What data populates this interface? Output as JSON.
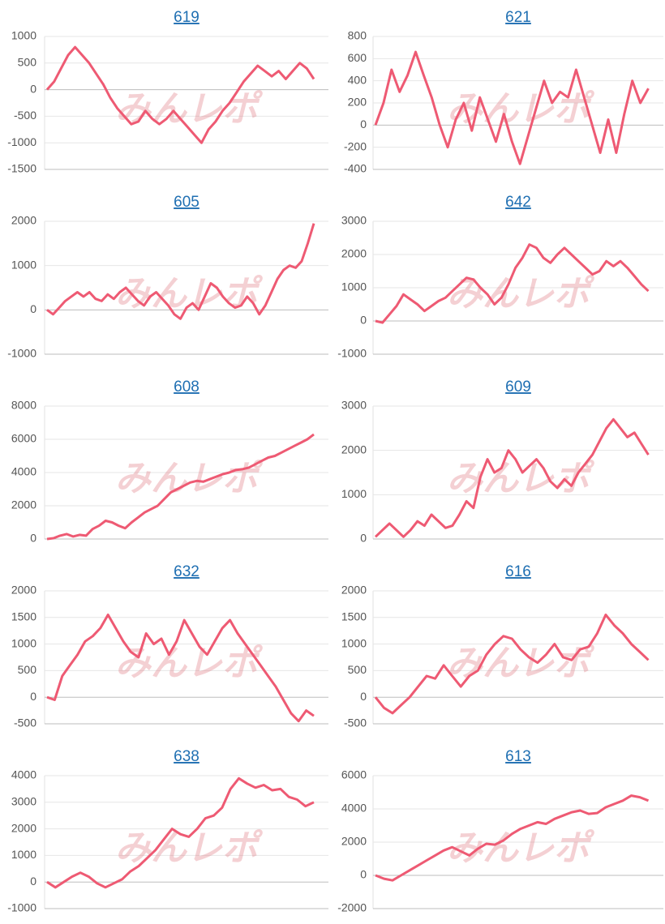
{
  "watermark": "みんレポ",
  "chart_data": [
    {
      "type": "line",
      "title": "619",
      "color": "#ee5a73",
      "ylim": [
        -1500,
        1000
      ],
      "yticks": [
        -1500,
        -1000,
        -500,
        0,
        500,
        1000
      ],
      "grid": true,
      "values": [
        0,
        150,
        400,
        650,
        800,
        650,
        500,
        300,
        100,
        -150,
        -350,
        -500,
        -650,
        -600,
        -400,
        -550,
        -650,
        -550,
        -400,
        -550,
        -700,
        -850,
        -1000,
        -750,
        -600,
        -400,
        -250,
        -50,
        150,
        300,
        450,
        350,
        250,
        350,
        200,
        350,
        500,
        400,
        200
      ]
    },
    {
      "type": "line",
      "title": "621",
      "color": "#ee5a73",
      "ylim": [
        -400,
        800
      ],
      "yticks": [
        -400,
        -200,
        0,
        200,
        400,
        600,
        800
      ],
      "grid": true,
      "values": [
        0,
        200,
        500,
        300,
        450,
        660,
        450,
        250,
        0,
        -200,
        50,
        200,
        -50,
        250,
        50,
        -150,
        100,
        -150,
        -350,
        -100,
        150,
        400,
        200,
        300,
        250,
        500,
        250,
        0,
        -250,
        50,
        -250,
        100,
        400,
        200,
        330
      ]
    },
    {
      "type": "line",
      "title": "605",
      "color": "#ee5a73",
      "ylim": [
        -1000,
        2000
      ],
      "yticks": [
        -1000,
        0,
        1000,
        2000
      ],
      "grid": true,
      "values": [
        0,
        -100,
        50,
        200,
        300,
        400,
        300,
        400,
        250,
        200,
        350,
        250,
        400,
        500,
        350,
        200,
        100,
        300,
        400,
        250,
        100,
        -100,
        -200,
        50,
        150,
        0,
        300,
        600,
        500,
        300,
        150,
        50,
        100,
        300,
        150,
        -100,
        100,
        400,
        700,
        900,
        1000,
        950,
        1100,
        1500,
        1950
      ]
    },
    {
      "type": "line",
      "title": "642",
      "color": "#ee5a73",
      "ylim": [
        -1000,
        3000
      ],
      "yticks": [
        -1000,
        0,
        1000,
        2000,
        3000
      ],
      "grid": true,
      "values": [
        0,
        -50,
        200,
        450,
        800,
        650,
        500,
        300,
        450,
        600,
        700,
        900,
        1100,
        1300,
        1250,
        1000,
        800,
        500,
        700,
        1100,
        1600,
        1900,
        2300,
        2200,
        1900,
        1750,
        2000,
        2200,
        2000,
        1800,
        1600,
        1400,
        1500,
        1800,
        1650,
        1800,
        1600,
        1350,
        1100,
        900
      ]
    },
    {
      "type": "line",
      "title": "608",
      "color": "#ee5a73",
      "ylim": [
        0,
        8000
      ],
      "yticks": [
        0,
        2000,
        4000,
        6000,
        8000
      ],
      "grid": true,
      "values": [
        0,
        50,
        200,
        300,
        150,
        250,
        200,
        600,
        800,
        1100,
        1000,
        800,
        650,
        1000,
        1300,
        1600,
        1800,
        2000,
        2400,
        2800,
        3000,
        3200,
        3400,
        3500,
        3450,
        3600,
        3750,
        3900,
        4000,
        4150,
        4200,
        4300,
        4500,
        4700,
        4900,
        5000,
        5200,
        5400,
        5600,
        5800,
        6000,
        6300
      ]
    },
    {
      "type": "line",
      "title": "609",
      "color": "#ee5a73",
      "ylim": [
        0,
        3000
      ],
      "yticks": [
        0,
        1000,
        2000,
        3000
      ],
      "grid": true,
      "values": [
        50,
        200,
        350,
        200,
        50,
        200,
        400,
        300,
        550,
        400,
        250,
        300,
        550,
        850,
        700,
        1400,
        1800,
        1500,
        1600,
        2000,
        1800,
        1500,
        1650,
        1800,
        1600,
        1300,
        1150,
        1350,
        1200,
        1500,
        1700,
        1900,
        2200,
        2500,
        2700,
        2500,
        2300,
        2400,
        2150,
        1900
      ]
    },
    {
      "type": "line",
      "title": "632",
      "color": "#ee5a73",
      "ylim": [
        -500,
        2000
      ],
      "yticks": [
        -500,
        0,
        500,
        1000,
        1500,
        2000
      ],
      "grid": true,
      "values": [
        0,
        -50,
        400,
        600,
        800,
        1050,
        1150,
        1300,
        1550,
        1300,
        1050,
        850,
        750,
        1200,
        1000,
        1100,
        800,
        1050,
        1450,
        1200,
        950,
        800,
        1050,
        1300,
        1450,
        1200,
        1000,
        800,
        600,
        400,
        200,
        -50,
        -300,
        -450,
        -250,
        -350
      ]
    },
    {
      "type": "line",
      "title": "616",
      "color": "#ee5a73",
      "ylim": [
        -500,
        2000
      ],
      "yticks": [
        -500,
        0,
        500,
        1000,
        1500,
        2000
      ],
      "grid": true,
      "values": [
        0,
        -200,
        -300,
        -150,
        0,
        200,
        400,
        350,
        600,
        400,
        200,
        400,
        500,
        800,
        1000,
        1150,
        1100,
        900,
        750,
        650,
        800,
        1000,
        750,
        700,
        900,
        950,
        1200,
        1550,
        1350,
        1200,
        1000,
        850,
        700
      ]
    },
    {
      "type": "line",
      "title": "638",
      "color": "#ee5a73",
      "ylim": [
        -1000,
        4000
      ],
      "yticks": [
        -1000,
        0,
        1000,
        2000,
        3000,
        4000
      ],
      "grid": true,
      "values": [
        0,
        -200,
        0,
        200,
        350,
        200,
        -50,
        -200,
        -50,
        100,
        400,
        600,
        900,
        1200,
        1600,
        2000,
        1800,
        1700,
        2000,
        2400,
        2500,
        2800,
        3500,
        3900,
        3700,
        3550,
        3650,
        3450,
        3500,
        3200,
        3100,
        2850,
        3000
      ]
    },
    {
      "type": "line",
      "title": "613",
      "color": "#ee5a73",
      "ylim": [
        -2000,
        6000
      ],
      "yticks": [
        -2000,
        0,
        2000,
        4000,
        6000
      ],
      "grid": true,
      "values": [
        0,
        -200,
        -300,
        0,
        300,
        600,
        900,
        1200,
        1500,
        1700,
        1450,
        1200,
        1600,
        1900,
        1850,
        2100,
        2500,
        2800,
        3000,
        3200,
        3100,
        3400,
        3600,
        3800,
        3900,
        3700,
        3750,
        4100,
        4300,
        4500,
        4800,
        4700,
        4500
      ]
    }
  ]
}
